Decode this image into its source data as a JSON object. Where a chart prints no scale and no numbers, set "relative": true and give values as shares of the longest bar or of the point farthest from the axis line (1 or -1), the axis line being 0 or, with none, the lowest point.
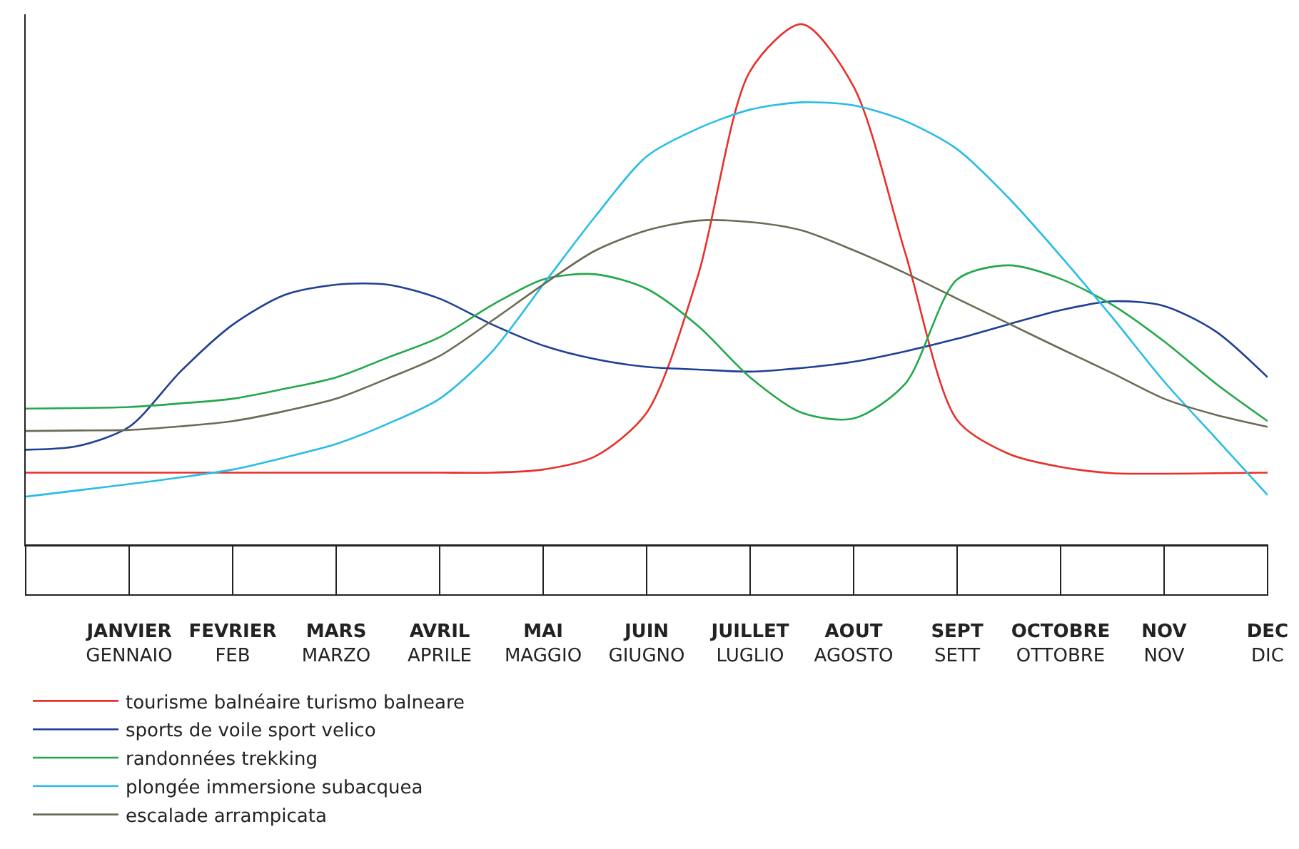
{
  "chart_data": {
    "type": "line",
    "relative": true,
    "categories": [
      null,
      null,
      "JANVIER\nGENNAIO",
      null,
      "FEVRIER\nFEB",
      null,
      "MARS\nMARZO",
      null,
      "AVRIL\nAPRILE",
      null,
      "MAI\nMAGGIO",
      null,
      "JUIN\nGIUGNO",
      null,
      "JUILLET\nLUGLIO",
      null,
      "AOUT\nAGOSTO",
      null,
      "SEPT\nSETT",
      null,
      "OCTOBRE\nOTTOBRE",
      null,
      "NOV\nNOV",
      null,
      "DEC\nDIC"
    ],
    "grid": false,
    "legend": "bottom",
    "marker": "none",
    "line_style": "solid",
    "series": [
      {
        "name": "tourisme balnéaire turismo balneare",
        "color": "#e8302a",
        "values": [
          0.139,
          0.139,
          0.139,
          0.139,
          0.139,
          0.139,
          0.139,
          0.139,
          0.139,
          0.139,
          0.145,
          0.17,
          0.254,
          0.52,
          0.91,
          1,
          0.88,
          0.56,
          0.24,
          0.175,
          0.15,
          0.138,
          0.137,
          0.138,
          0.139
        ]
      },
      {
        "name": "sports de voile sport velico",
        "color": "#1f3f95",
        "values": [
          0.183,
          0.19,
          0.227,
          0.334,
          0.423,
          0.48,
          0.5,
          0.5,
          0.473,
          0.424,
          0.383,
          0.357,
          0.342,
          0.337,
          0.333,
          0.34,
          0.352,
          0.372,
          0.396,
          0.424,
          0.451,
          0.468,
          0.459,
          0.41,
          0.322
        ]
      },
      {
        "name": "randonnées trekking",
        "color": "#22a84a",
        "values": [
          0.262,
          0.263,
          0.265,
          0.272,
          0.281,
          0.3,
          0.322,
          0.36,
          0.399,
          0.46,
          0.51,
          0.52,
          0.492,
          0.42,
          0.322,
          0.254,
          0.243,
          0.31,
          0.51,
          0.537,
          0.511,
          0.461,
          0.391,
          0.31,
          0.238
        ]
      },
      {
        "name": "plongée immersione subacquea",
        "color": "#27bde6",
        "values": [
          0.093,
          0.105,
          0.117,
          0.13,
          0.145,
          0.168,
          0.194,
          0.233,
          0.281,
          0.37,
          0.5,
          0.63,
          0.746,
          0.8,
          0.836,
          0.85,
          0.844,
          0.814,
          0.76,
          0.666,
          0.555,
          0.437,
          0.314,
          0.205,
          0.096
        ]
      },
      {
        "name": "escalade arrampicata",
        "color": "#6b6b55",
        "values": [
          0.219,
          0.22,
          0.221,
          0.228,
          0.238,
          0.257,
          0.281,
          0.32,
          0.363,
          0.43,
          0.5,
          0.565,
          0.604,
          0.623,
          0.62,
          0.604,
          0.566,
          0.522,
          0.473,
          0.425,
          0.377,
          0.33,
          0.281,
          0.25,
          0.227
        ]
      }
    ]
  }
}
